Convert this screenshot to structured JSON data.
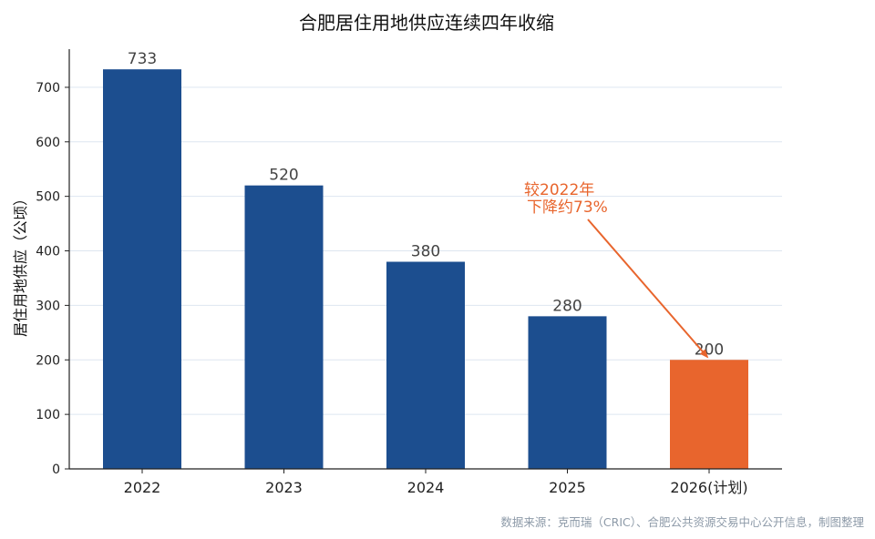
{
  "chart_data": {
    "type": "bar",
    "title": "合肥居住用地供应连续四年收缩",
    "ylabel": "居住用地供应（公顷）",
    "xlabel": "",
    "categories": [
      "2022",
      "2023",
      "2024",
      "2025",
      "2026(计划)"
    ],
    "values": [
      733,
      520,
      380,
      280,
      200
    ],
    "data_labels": [
      "733",
      "520",
      "380",
      "280",
      "200"
    ],
    "ylim": [
      0,
      770
    ],
    "yticks": [
      0,
      100,
      200,
      300,
      400,
      500,
      600,
      700
    ],
    "ytick_labels": [
      "0",
      "100",
      "200",
      "300",
      "400",
      "500",
      "600",
      "700"
    ],
    "grid": true,
    "colors": {
      "default": "#1c4e8f",
      "highlight": "#e8652d",
      "annotation": "#e8652d",
      "grid": "#dde6f0"
    },
    "highlight_index": 4,
    "annotation": {
      "lines": [
        "较2022年",
        "下降约73%"
      ],
      "target_category": "2026(计划)"
    },
    "source": "数据来源：克而瑞（CRIC）、合肥公共资源交易中心公开信息，制图整理"
  }
}
